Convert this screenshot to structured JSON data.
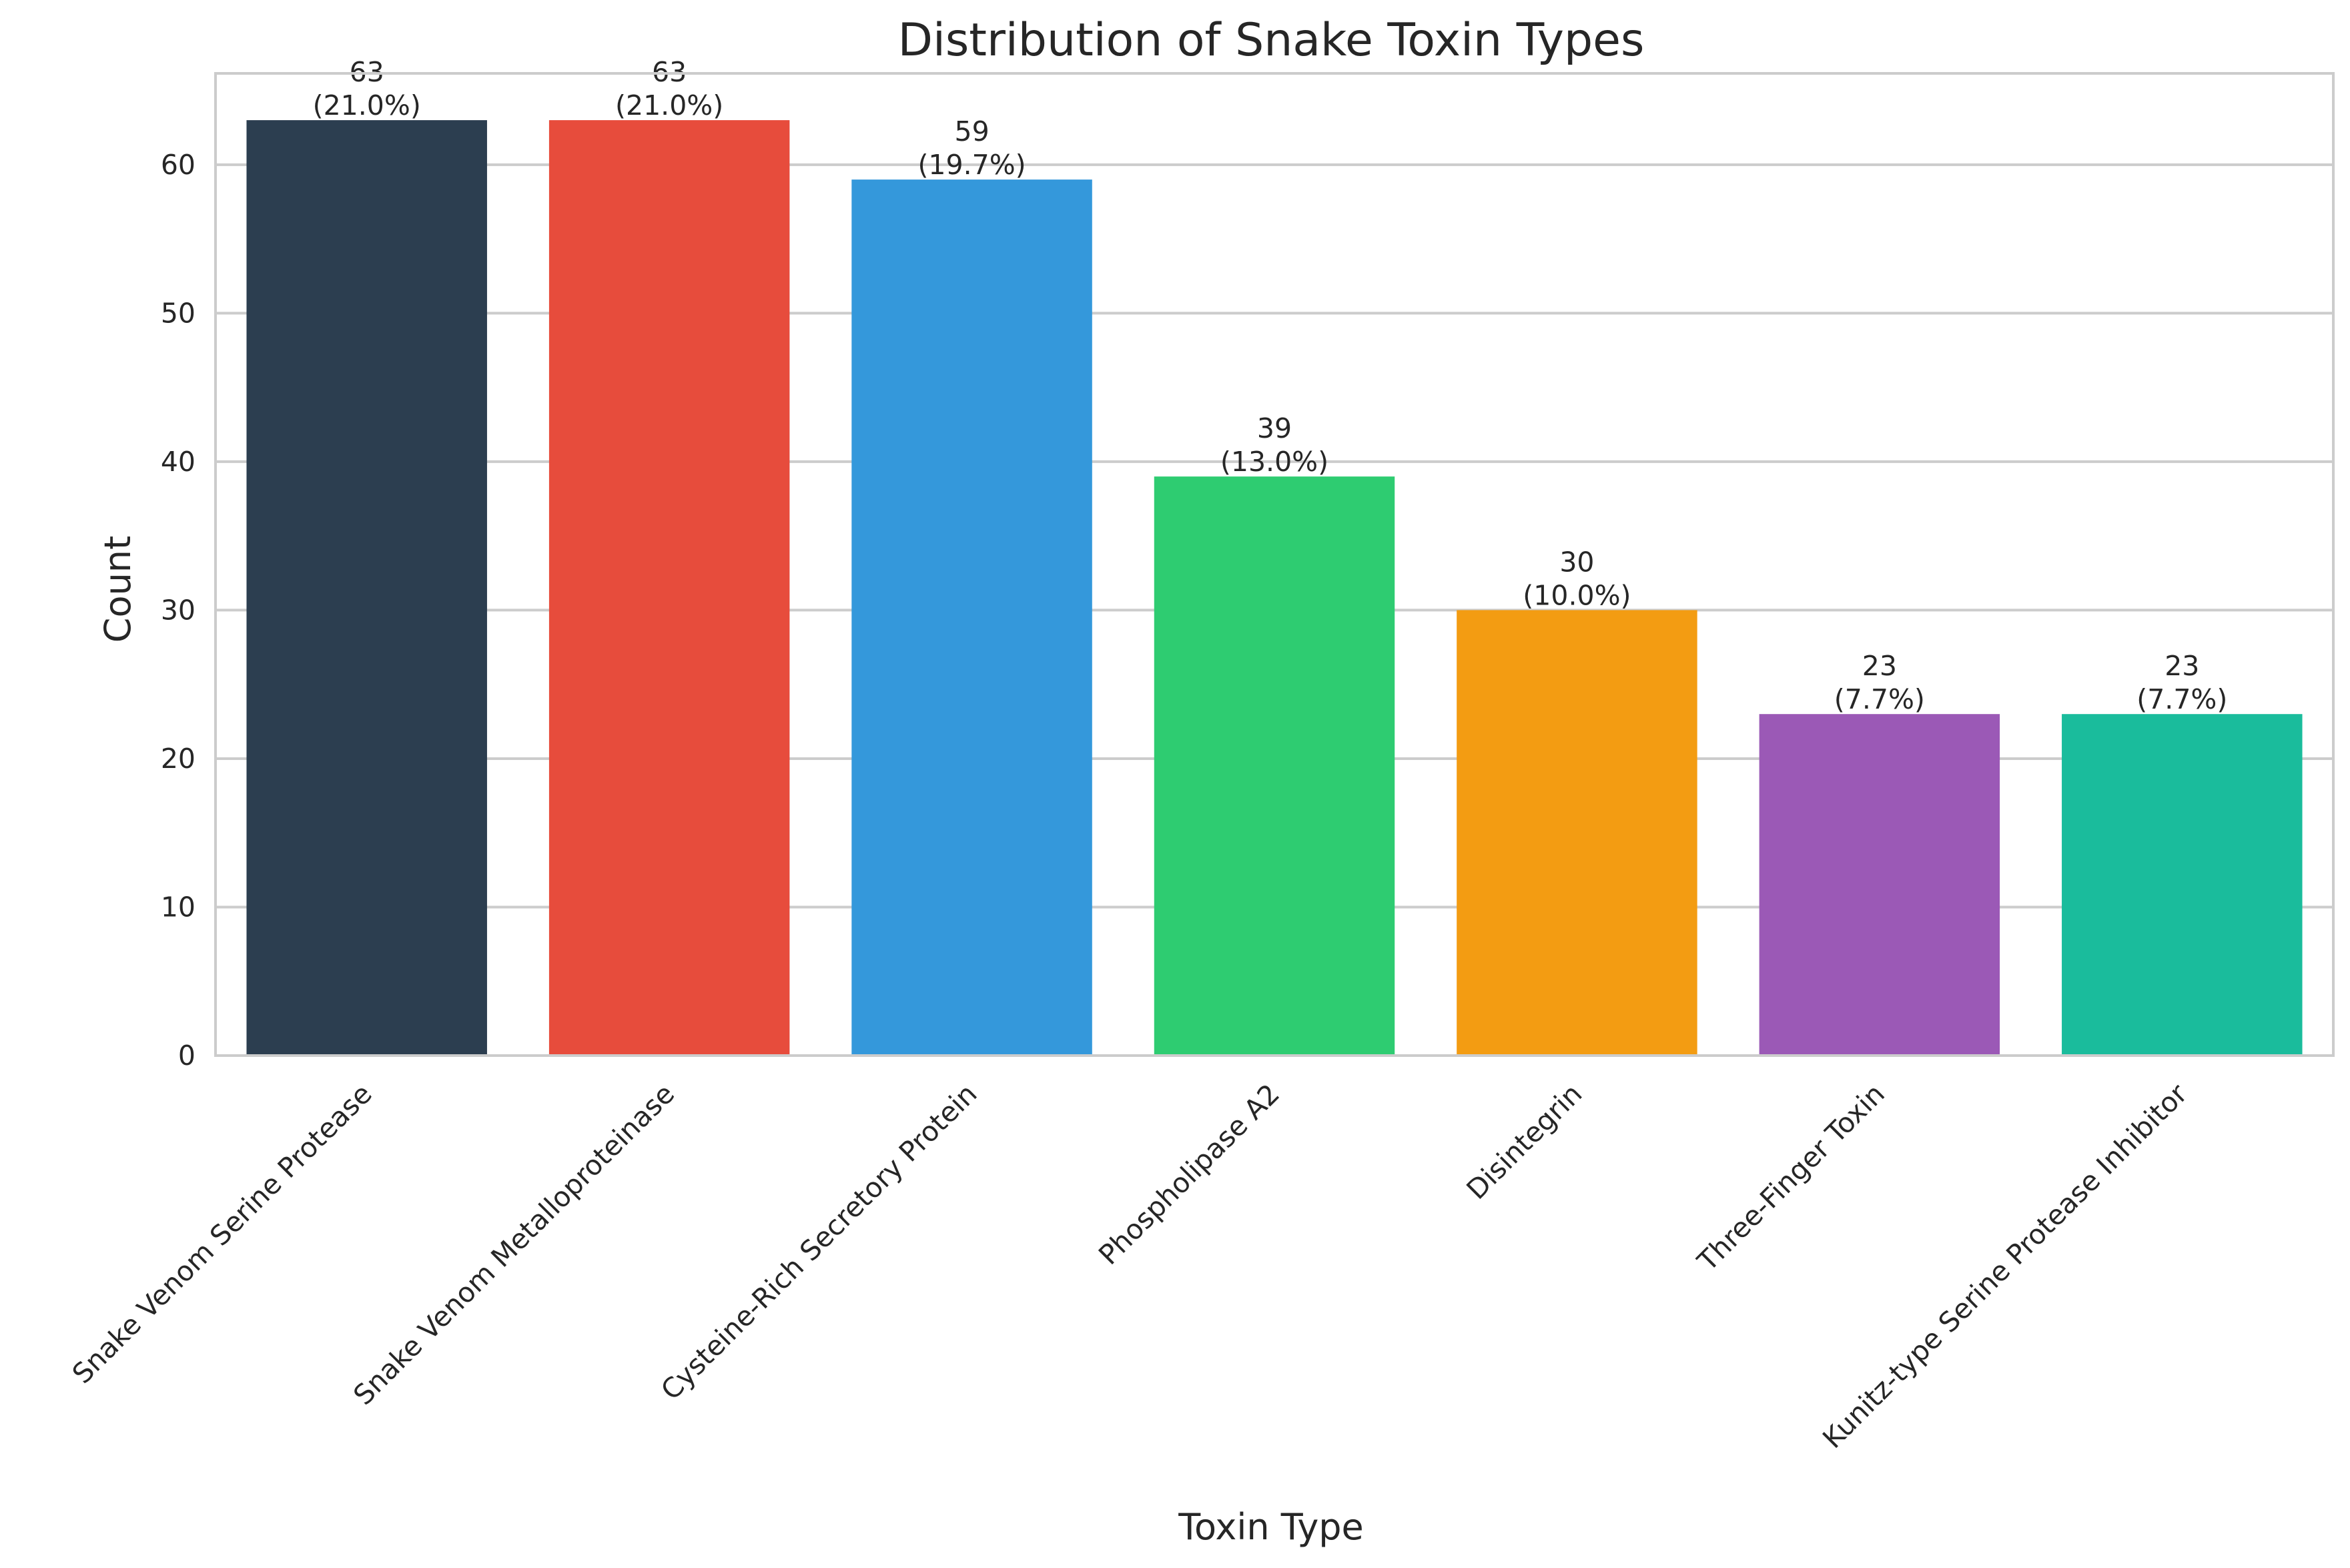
{
  "chart_data": {
    "type": "bar",
    "title": "Distribution of Snake Toxin Types",
    "xlabel": "Toxin Type",
    "ylabel": "Count",
    "ylim": [
      0,
      66.15
    ],
    "yticks": [
      0,
      10,
      20,
      30,
      40,
      50,
      60
    ],
    "grid": "horizontal",
    "legend": "none",
    "categories": [
      "Snake Venom Serine Protease",
      "Snake Venom Metalloproteinase",
      "Cysteine-Rich Secretory Protein",
      "Phospholipase A2",
      "Disintegrin",
      "Three-Finger Toxin",
      "Kunitz-type Serine Protease Inhibitor"
    ],
    "values": [
      63,
      63,
      59,
      39,
      30,
      23,
      23
    ],
    "percent_labels": [
      "(21.0%)",
      "(21.0%)",
      "(19.7%)",
      "(13.0%)",
      "(10.0%)",
      "(7.7%)",
      "(7.7%)"
    ],
    "colors": [
      "#2c3e50",
      "#e74c3c",
      "#3498db",
      "#2ecc71",
      "#f39c12",
      "#9b59b6",
      "#1abc9c"
    ]
  }
}
